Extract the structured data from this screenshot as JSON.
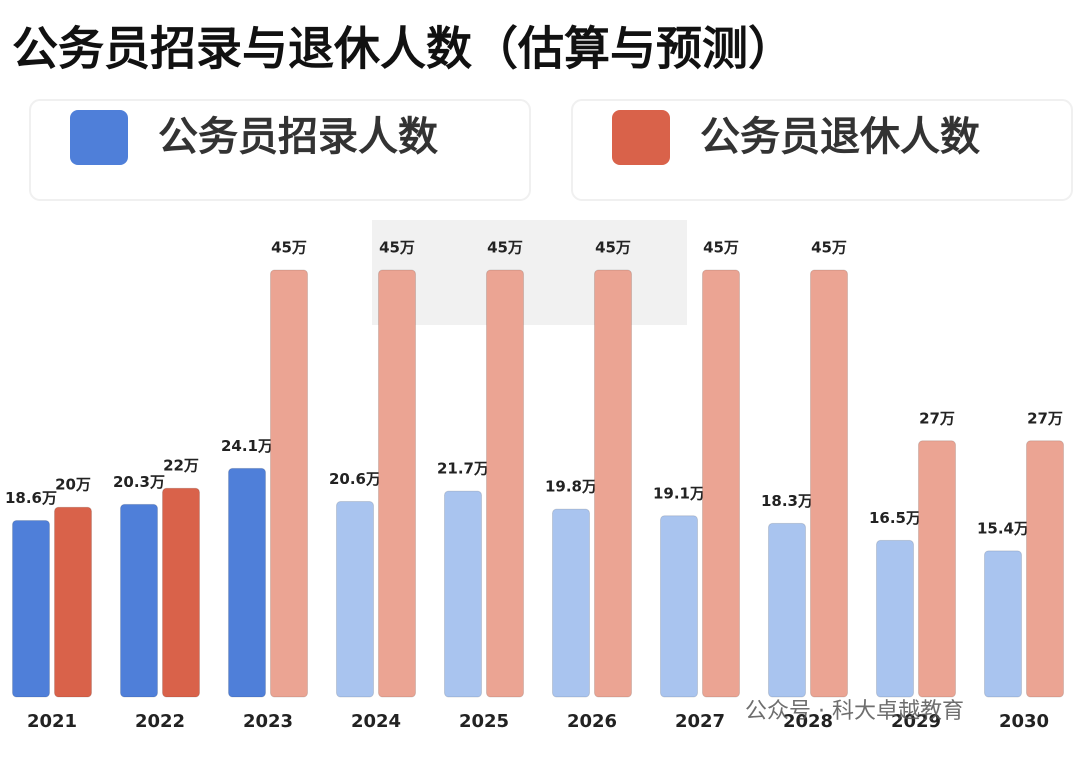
{
  "chart_data": {
    "type": "bar",
    "title": "公务员招录与退休人数（估算与预测）",
    "categories": [
      "2021",
      "2022",
      "2023",
      "2024",
      "2025",
      "2026",
      "2027",
      "2028",
      "2029",
      "2030"
    ],
    "series": [
      {
        "name": "公务员招录人数",
        "color": "#4f7fd9",
        "colors": [
          "#4f7fd9",
          "#4f7fd9",
          "#4f7fd9",
          "#a9c4ef",
          "#a9c4ef",
          "#a9c4ef",
          "#a9c4ef",
          "#a9c4ef",
          "#a9c4ef",
          "#a9c4ef"
        ],
        "values": [
          18.6,
          20.3,
          24.1,
          20.6,
          21.7,
          19.8,
          19.1,
          18.3,
          16.5,
          15.4
        ],
        "value_labels": [
          "18.6万",
          "20.3万",
          "24.1万",
          "20.6万",
          "21.7万",
          "19.8万",
          "19.1万",
          "18.3万",
          "16.5万",
          "15.4万"
        ]
      },
      {
        "name": "公务员退休人数",
        "color": "#d9624a",
        "colors": [
          "#d9624a",
          "#d9624a",
          "#eba493",
          "#eba493",
          "#eba493",
          "#eba493",
          "#eba493",
          "#eba493",
          "#eba493",
          "#eba493"
        ],
        "values": [
          20,
          22,
          45,
          45,
          45,
          45,
          45,
          45,
          27,
          27
        ],
        "value_labels": [
          "20万",
          "22万",
          "45万",
          "45万",
          "45万",
          "45万",
          "45万",
          "45万",
          "27万",
          "27万"
        ]
      }
    ],
    "watermark": "公众号 · 科大卓越教育"
  }
}
